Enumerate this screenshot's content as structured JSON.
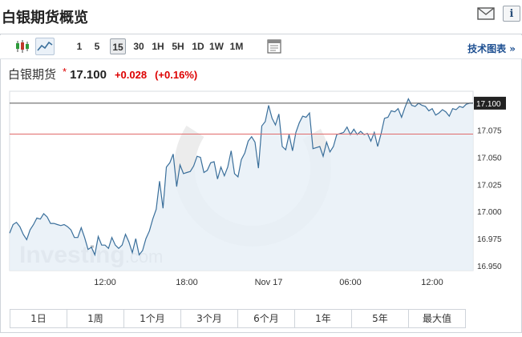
{
  "header": {
    "title": "白银期货概览",
    "icons": [
      "mail-icon",
      "info-icon"
    ],
    "info_glyph": "i"
  },
  "toolbar": {
    "chart_type_icons": [
      "candlestick-icon",
      "line-chart-icon"
    ],
    "intervals": [
      "1",
      "5",
      "15",
      "30",
      "1H",
      "5H",
      "1D",
      "1W",
      "1M"
    ],
    "active_interval": "15",
    "settings_icon": "chart-settings-icon",
    "tech_chart_link": "技术图表 »"
  },
  "quote": {
    "name": "白银期货",
    "star": "*",
    "price": "17.100",
    "change": "+0.028",
    "change_pct": "(+0.16%)",
    "change_color": "#dd0000"
  },
  "watermark": "Investing.com",
  "chart_data": {
    "type": "area",
    "y_ticks": [
      "17.100",
      "17.075",
      "17.050",
      "17.025",
      "17.000",
      "16.975",
      "16.950"
    ],
    "ylim": [
      16.9455,
      17.111
    ],
    "x_ticks": [
      {
        "label": "12:00",
        "x": 28
      },
      {
        "label": "18:00",
        "x": 52
      },
      {
        "label": "Nov 17",
        "x": 76
      },
      {
        "label": "06:00",
        "x": 100
      },
      {
        "label": "12:00",
        "x": 124
      }
    ],
    "xlim": [
      0,
      136
    ],
    "current_price_label": "17.100",
    "current_price": 17.1,
    "reference_line": 17.0715,
    "line_color": "#3a6f9b",
    "fill_color": "#e8f0f7",
    "reference_color": "#e06a6a",
    "current_line_color": "#555555",
    "values": [
      16.98,
      16.988,
      16.99,
      16.986,
      16.979,
      16.974,
      16.983,
      16.988,
      16.994,
      16.993,
      16.998,
      16.995,
      16.989,
      16.989,
      16.988,
      16.987,
      16.988,
      16.986,
      16.983,
      16.976,
      16.976,
      16.985,
      16.976,
      16.965,
      16.967,
      16.96,
      16.977,
      16.969,
      16.969,
      16.966,
      16.976,
      16.969,
      16.966,
      16.969,
      16.979,
      16.972,
      16.962,
      16.975,
      16.96,
      16.964,
      16.975,
      16.982,
      16.993,
      17.002,
      17.028,
      17.003,
      17.041,
      17.045,
      17.053,
      17.023,
      17.043,
      17.035,
      17.036,
      17.037,
      17.042,
      17.051,
      17.05,
      17.036,
      17.038,
      17.045,
      17.046,
      17.03,
      17.041,
      17.033,
      17.041,
      17.056,
      17.035,
      17.032,
      17.048,
      17.054,
      17.065,
      17.069,
      17.064,
      17.04,
      17.079,
      17.083,
      17.098,
      17.086,
      17.08,
      17.09,
      17.06,
      17.057,
      17.071,
      17.056,
      17.073,
      17.082,
      17.088,
      17.087,
      17.091,
      17.058,
      17.059,
      17.06,
      17.051,
      17.064,
      17.055,
      17.06,
      17.071,
      17.072,
      17.073,
      17.078,
      17.071,
      17.076,
      17.071,
      17.074,
      17.071,
      17.072,
      17.065,
      17.073,
      17.06,
      17.072,
      17.086,
      17.087,
      17.093,
      17.092,
      17.095,
      17.087,
      17.096,
      17.104,
      17.098,
      17.097,
      17.1,
      17.098,
      17.097,
      17.093,
      17.095,
      17.089,
      17.091,
      17.094,
      17.092,
      17.088,
      17.095,
      17.094,
      17.097,
      17.096,
      17.099,
      17.1,
      17.1
    ]
  },
  "ranges": [
    "1日",
    "1周",
    "1个月",
    "3个月",
    "6个月",
    "1年",
    "5年",
    "最大值"
  ]
}
